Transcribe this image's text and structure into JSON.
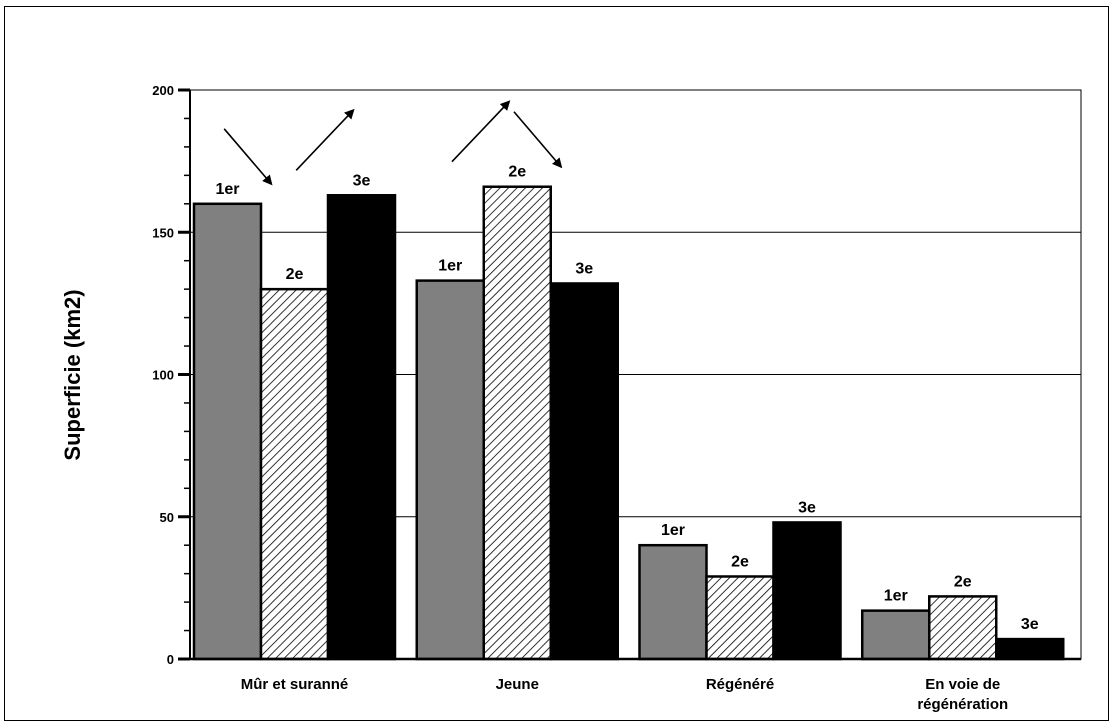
{
  "chart_data": {
    "type": "bar",
    "categories": [
      [
        "Mûr et suranné"
      ],
      [
        "Jeune"
      ],
      [
        "Régénéré"
      ],
      [
        "En voie de",
        "régénération"
      ]
    ],
    "series": [
      {
        "label": "1er",
        "fill": "gray",
        "values": [
          160,
          133,
          40,
          17
        ]
      },
      {
        "label": "2e",
        "fill": "hatch",
        "values": [
          130,
          166,
          29,
          22
        ]
      },
      {
        "label": "3e",
        "fill": "black",
        "values": [
          163,
          132,
          48,
          7
        ]
      }
    ],
    "title": "",
    "xlabel": "",
    "ylabel": "Superficie (km2)",
    "ylim": [
      0,
      200
    ],
    "yticks": [
      0,
      50,
      100,
      150,
      200
    ],
    "grid": true,
    "trend_arrows": [
      {
        "category": "Mûr et suranné",
        "from_series": "1er",
        "to_series": "2e",
        "direction": "down"
      },
      {
        "category": "Mûr et suranné",
        "from_series": "2e",
        "to_series": "3e",
        "direction": "up"
      },
      {
        "category": "Jeune",
        "from_series": "1er",
        "to_series": "2e",
        "direction": "up"
      },
      {
        "category": "Jeune",
        "from_series": "2e",
        "to_series": "3e",
        "direction": "down"
      }
    ]
  },
  "colors": {
    "series_gray": "#808080",
    "series_black": "#000000",
    "hatch_stroke": "#000000",
    "gridline": "#000000"
  }
}
